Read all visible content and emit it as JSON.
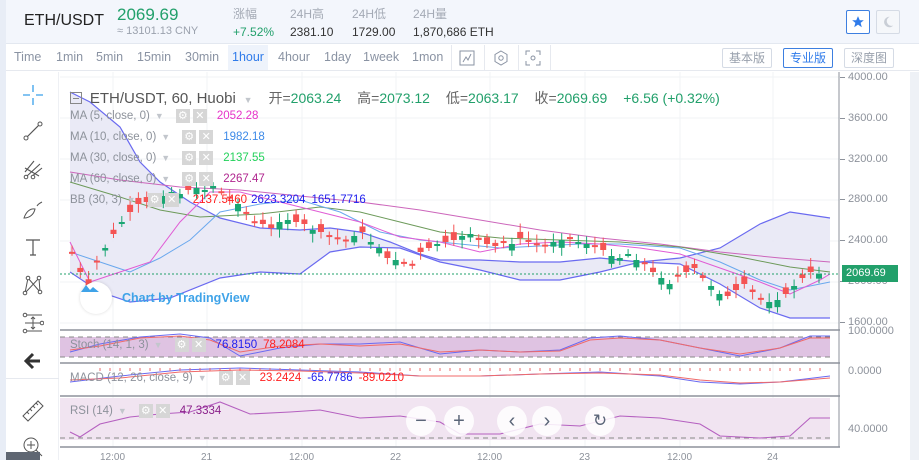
{
  "header": {
    "pair": "ETH/USDT",
    "last_price": "2069.69",
    "cny_equiv": "≈ 13101.13 CNY",
    "stats": [
      {
        "label": "涨幅",
        "value": "+7.52%",
        "positive": true
      },
      {
        "label": "24H高",
        "value": "2381.10"
      },
      {
        "label": "24H低",
        "value": "1729.00"
      },
      {
        "label": "24H量",
        "value": "1,870,686 ETH"
      }
    ],
    "favorite_icon": "star-icon",
    "theme_icon": "moon-icon"
  },
  "toolbar": {
    "intervals": [
      "Time",
      "1min",
      "5min",
      "15min",
      "30min",
      "1hour",
      "4hour",
      "1day",
      "1week",
      "1mon"
    ],
    "active_interval": "1hour",
    "icons": [
      "indicator-icon",
      "settings-icon",
      "fullscreen-icon"
    ],
    "views": [
      {
        "label": "基本版",
        "active": false
      },
      {
        "label": "专业版",
        "active": true
      },
      {
        "label": "深度图",
        "active": false
      }
    ]
  },
  "drawing_tools": [
    "crosshair-icon",
    "trend-line-icon",
    "pitchfork-icon",
    "brush-icon",
    "text-icon",
    "pattern-icon",
    "measure-icon",
    "back-arrow-icon",
    "ruler-icon",
    "zoom-in-icon"
  ],
  "chart": {
    "title": "ETH/USDT, 60, Huobi",
    "ohlc": {
      "open_label": "开=",
      "open": "2063.24",
      "high_label": "高=",
      "high": "2073.12",
      "low_label": "低=",
      "low": "2063.17",
      "close_label": "收=",
      "close": "2069.69",
      "change": "+6.56 (+0.32%)"
    },
    "indicators": [
      {
        "name": "MA (5, close, 0)",
        "values": [
          "2052.28"
        ],
        "colors": [
          "#e632c8"
        ]
      },
      {
        "name": "MA (10, close, 0)",
        "values": [
          "1982.18"
        ],
        "colors": [
          "#3d8ae8"
        ]
      },
      {
        "name": "MA (30, close, 0)",
        "values": [
          "2137.55"
        ],
        "colors": [
          "#22d15a"
        ]
      },
      {
        "name": "MA (60, close, 0)",
        "values": [
          "2267.47"
        ],
        "colors": [
          "#b0268f"
        ]
      },
      {
        "name": "BB (30, 3)",
        "values": [
          "2137.5460",
          "2623.3204",
          "1651.7716"
        ],
        "colors": [
          "#ff2020",
          "#2020ee",
          "#2020ee"
        ]
      }
    ],
    "watermark": "Chart by TradingView",
    "price_scale": [
      "4000.00",
      "3600.00",
      "3200.00",
      "2800.00",
      "2400.00",
      "2000.00",
      "1600.00"
    ],
    "current_price_tag": "2069.69",
    "x_axis": [
      "12:00",
      "21",
      "12:00",
      "22",
      "12:00",
      "23",
      "12:00",
      "24"
    ],
    "sub_panes": [
      {
        "name": "Stoch (14, 1, 3)",
        "values": [
          "76.8150",
          "78.2084"
        ],
        "colors": [
          "#2020ee",
          "#ff2020"
        ],
        "scale": "100.0000"
      },
      {
        "name": "MACD (12, 26, close, 9)",
        "values": [
          "23.2424",
          "-65.7786",
          "-89.0210"
        ],
        "colors": [
          "#ff2020",
          "#2020ee",
          "#ff2020"
        ],
        "scale": "0.0000"
      },
      {
        "name": "RSI (14)",
        "values": [
          "47.3334"
        ],
        "colors": [
          "#8a1f8a"
        ],
        "scale": "40.0000"
      }
    ],
    "nav_buttons": [
      "zoom-out-icon",
      "zoom-in-icon",
      "scroll-left-icon",
      "scroll-right-icon",
      "reset-icon"
    ]
  },
  "chart_data": {
    "type": "candlestick",
    "title": "ETH/USDT, 60, Huobi",
    "xlabel": "",
    "ylabel": "",
    "x_ticks": [
      "12:00",
      "21",
      "12:00",
      "22",
      "12:00",
      "23",
      "12:00",
      "24"
    ],
    "ylim": [
      1500,
      4000
    ],
    "last": {
      "open": 2063.24,
      "high": 2073.12,
      "low": 2063.17,
      "close": 2069.69,
      "change": 6.56,
      "change_pct": 0.32
    },
    "overlays": {
      "MA5": 2052.28,
      "MA10": 1982.18,
      "MA30": 2137.55,
      "MA60": 2267.47,
      "BB_mid": 2137.546,
      "BB_upper": 2623.3204,
      "BB_lower": 1651.7716
    },
    "subcharts": {
      "Stoch_K": 76.815,
      "Stoch_D": 78.2084,
      "MACD": 23.2424,
      "MACD_signal": -65.7786,
      "MACD_hist": -89.021,
      "RSI": 47.3334
    }
  }
}
